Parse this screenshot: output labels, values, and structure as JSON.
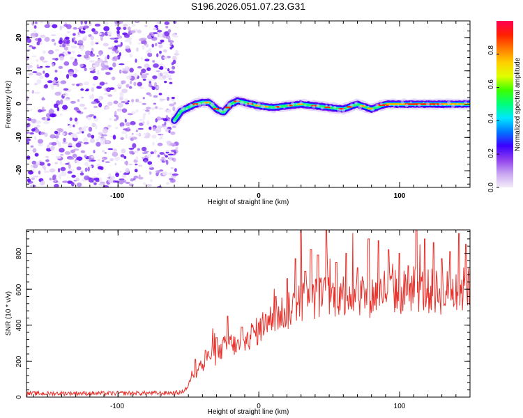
{
  "chart_data": [
    {
      "type": "heatmap",
      "title": "S196.2026.051.07.23.G31",
      "xlabel": "Height of straight line (km)",
      "ylabel": "Frequency (Hz)",
      "xlim": [
        -165,
        150
      ],
      "ylim": [
        -25,
        25
      ],
      "x_ticks": [
        "-100",
        "0",
        "100"
      ],
      "y_ticks": [
        "20",
        "10",
        "0",
        "-10",
        "-20"
      ],
      "noise_region_x": [
        -165,
        -60
      ],
      "ridge": {
        "x": [
          -60,
          -55,
          -50,
          -45,
          -40,
          -35,
          -30,
          -25,
          -20,
          -15,
          -10,
          -5,
          0,
          10,
          20,
          30,
          40,
          50,
          60,
          70,
          80,
          90,
          100,
          120,
          140,
          150
        ],
        "frequency": [
          -5,
          -2,
          -1,
          0,
          0.5,
          0.5,
          -1.5,
          -2.5,
          0,
          1,
          0.5,
          0,
          -0.5,
          -1,
          -0.5,
          0,
          -0.5,
          -1,
          -1.5,
          0,
          -1.5,
          0,
          0,
          0,
          0,
          0
        ]
      },
      "colorbar": {
        "label": "Normalized spectral amplitude",
        "range": [
          0,
          1
        ],
        "ticks": [
          "0.0",
          "0.2",
          "0.4",
          "0.6",
          "0.8"
        ],
        "colors": [
          "#f4edf8",
          "#c7a4f0",
          "#8f3fee",
          "#3a00ff",
          "#0077ff",
          "#00e6ff",
          "#00ff7a",
          "#3cff00",
          "#e0ff00",
          "#ffd000",
          "#ff7a00",
          "#ff2000",
          "#ff0055"
        ]
      }
    },
    {
      "type": "line",
      "title": "",
      "xlabel": "Height of straight line (km)",
      "ylabel": "SNR (10 * v/v)",
      "xlim": [
        -165,
        150
      ],
      "ylim": [
        0,
        930
      ],
      "x_ticks": [
        "-100",
        "0",
        "100"
      ],
      "y_ticks": [
        "0",
        "200",
        "400",
        "600",
        "800"
      ],
      "series": [
        {
          "name": "SNR",
          "color": "#e8302a",
          "x": [
            -165,
            -150,
            -130,
            -110,
            -90,
            -70,
            -55,
            -50,
            -47,
            -45,
            -42,
            -40,
            -35,
            -30,
            -25,
            -20,
            -15,
            -10,
            -5,
            0,
            5,
            10,
            15,
            20,
            25,
            30,
            35,
            40,
            50,
            60,
            70,
            80,
            90,
            100,
            110,
            120,
            130,
            140,
            150
          ],
          "values": [
            20,
            20,
            22,
            20,
            22,
            22,
            25,
            60,
            150,
            110,
            200,
            160,
            240,
            220,
            280,
            300,
            280,
            300,
            350,
            370,
            420,
            430,
            470,
            470,
            510,
            530,
            540,
            550,
            560,
            570,
            580,
            560,
            600,
            580,
            600,
            590,
            580,
            590,
            600
          ],
          "peaks_x": [
            -45,
            -38,
            -30,
            -22,
            -12,
            5,
            12,
            20,
            26,
            30,
            33,
            37,
            42,
            48,
            55,
            62,
            70,
            78,
            85,
            92,
            100,
            106,
            112,
            118,
            124,
            130,
            136,
            142,
            147
          ],
          "peaks_y": [
            210,
            260,
            330,
            450,
            390,
            460,
            560,
            660,
            770,
            860,
            700,
            820,
            790,
            860,
            750,
            800,
            720,
            880,
            870,
            820,
            800,
            730,
            920,
            880,
            860,
            770,
            810,
            910,
            850
          ]
        }
      ]
    }
  ]
}
